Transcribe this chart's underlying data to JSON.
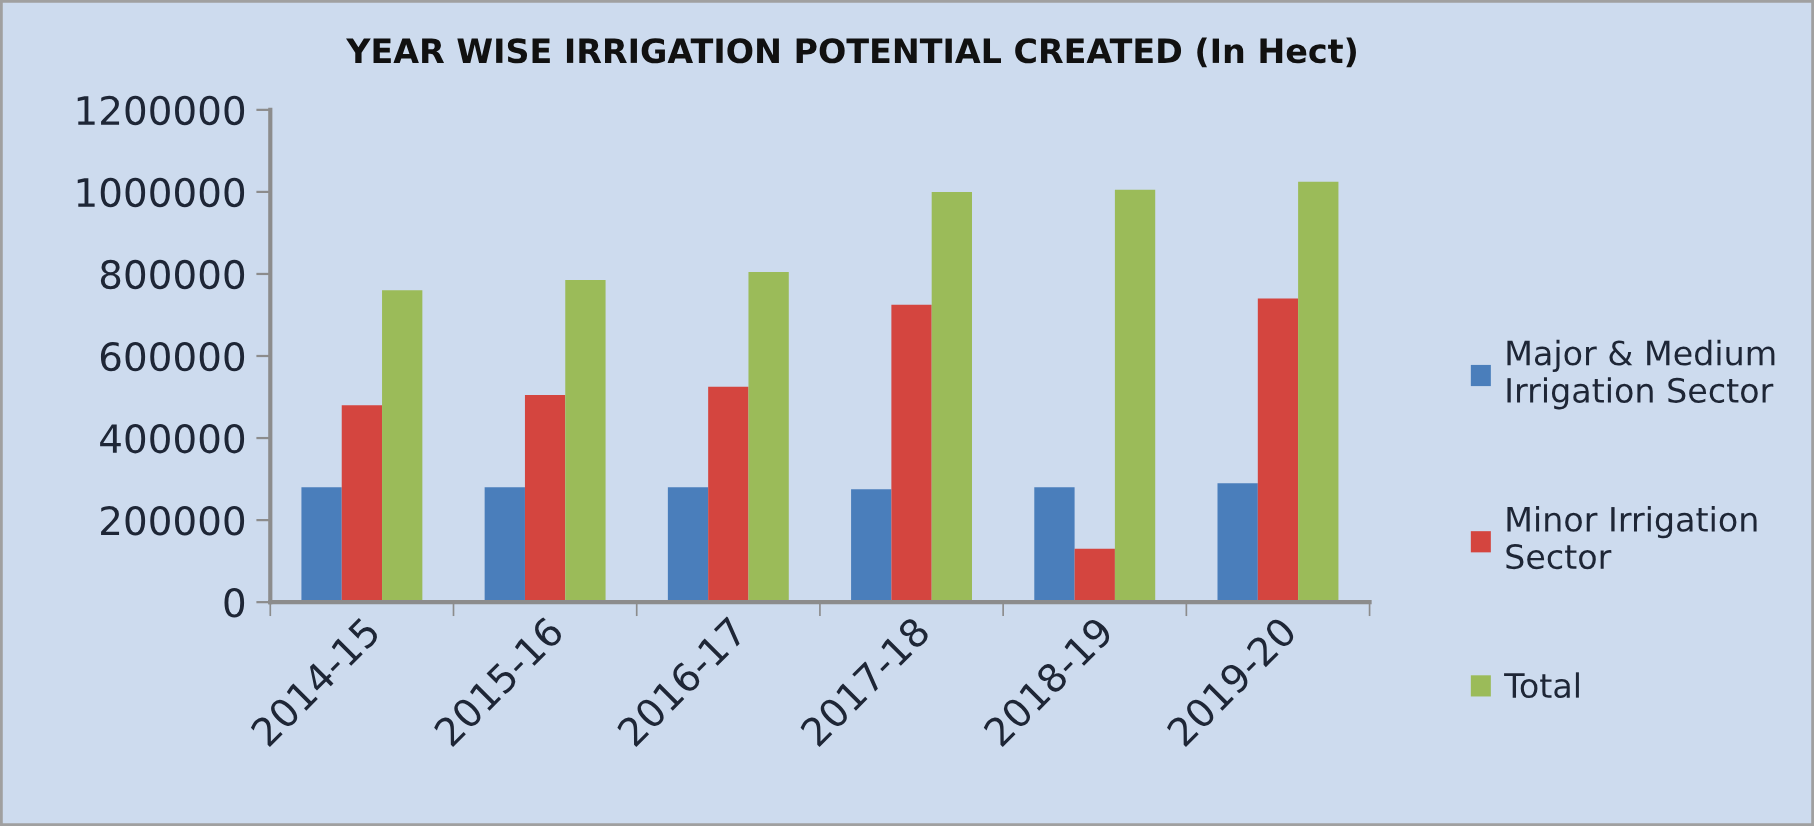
{
  "chart_data": {
    "type": "bar",
    "title": "YEAR WISE IRRIGATION POTENTIAL CREATED (In Hect)",
    "categories": [
      "2014-15",
      "2015-16",
      "2016-17",
      "2017-18",
      "2018-19",
      "2019-20"
    ],
    "series": [
      {
        "name": "Major & Medium\nIrrigation Sector",
        "color": "#4a7ebb",
        "values": [
          280000,
          280000,
          280000,
          275000,
          280000,
          290000
        ]
      },
      {
        "name": "Minor Irrigation\nSector",
        "color": "#d4453f",
        "values": [
          480000,
          505000,
          525000,
          725000,
          130000,
          740000
        ]
      },
      {
        "name": "Total",
        "color": "#9bbb59",
        "values": [
          760000,
          785000,
          805000,
          1000000,
          1005000,
          1025000
        ]
      }
    ],
    "ylim": [
      0,
      1200000
    ],
    "yticks": [
      0,
      200000,
      400000,
      600000,
      800000,
      1000000,
      1200000
    ],
    "grid": false,
    "legend": "right"
  }
}
